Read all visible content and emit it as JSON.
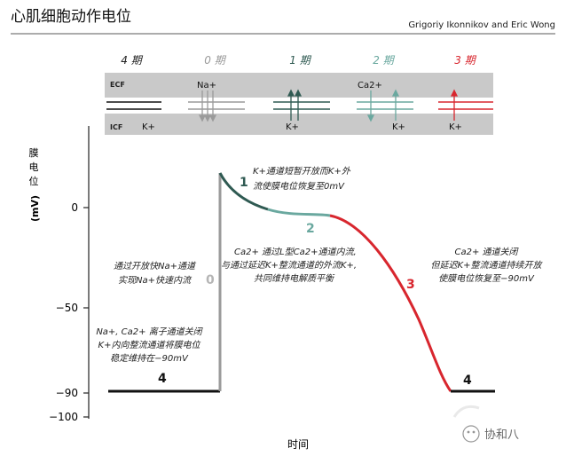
{
  "header": {
    "title": "心肌细胞动作电位",
    "credit": "Grigoriy Ikonnikov and Eric Wong"
  },
  "phases": [
    {
      "label": "4 期",
      "color": "#222222"
    },
    {
      "label": "0 期",
      "color": "#9a9a9a"
    },
    {
      "label": "1 期",
      "color": "#2f5a52"
    },
    {
      "label": "2 期",
      "color": "#6aa89f"
    },
    {
      "label": "3 期",
      "color": "#d8262e"
    }
  ],
  "membrane": {
    "ecf_label": "ECF",
    "icf_label": "ICF",
    "ions": {
      "k_phase4": "K+",
      "na_phase0": "Na+",
      "k_phase1": "K+",
      "ca_phase2": "Ca2+",
      "k_phase2": "K+",
      "k_phase3": "K+"
    }
  },
  "axis": {
    "ylabel_chars": [
      "膜",
      "电",
      "位"
    ],
    "yunit": "(mV)",
    "ticks": [
      "0",
      "−50",
      "−90",
      "−100"
    ],
    "xlabel": "时间"
  },
  "curve_labels": {
    "p0": "0",
    "p1": "1",
    "p2": "2",
    "p3": "3",
    "p4_left": "4",
    "p4_right": "4"
  },
  "annotations": {
    "phase1": [
      "K+通道短暂开放而K+外",
      "流使膜电位恢复至0mV"
    ],
    "phase2": [
      "Ca2+ 通过L型Ca2+通道内流,",
      "与通过延迟K+整流通道的外流K+,",
      "共同维持电解质平衡"
    ],
    "phase3": [
      "Ca2+ 通道关闭",
      "但延迟K+整流通道持续开放",
      "使膜电位恢复至−90mV"
    ],
    "phase0": [
      "通过开放快Na+通道",
      "实现Na+快速内流"
    ],
    "phase4": [
      "Na+, Ca2+ 离子通道关闭",
      "K+内向整流通道将膜电位",
      "稳定维持在−90mV"
    ]
  },
  "watermark": {
    "logo_text": "协和八"
  }
}
